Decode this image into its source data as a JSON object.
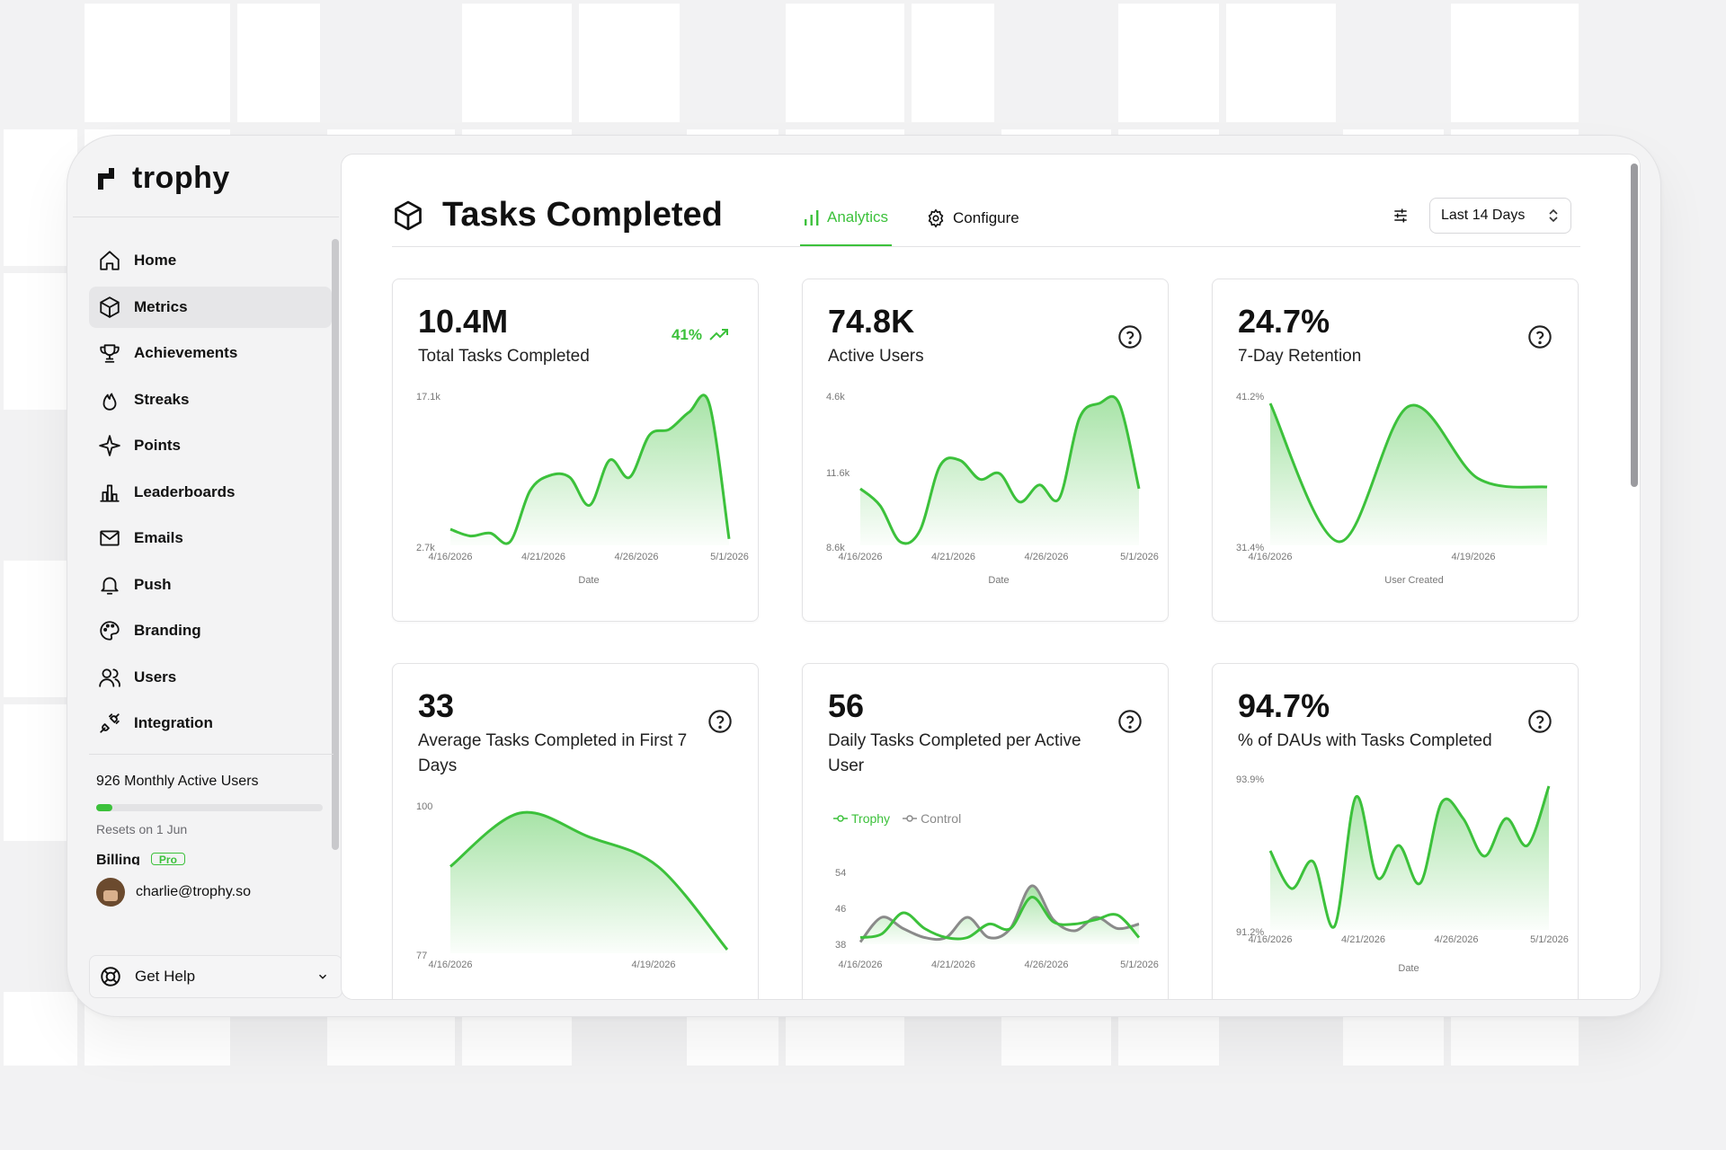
{
  "app": {
    "name": "trophy"
  },
  "sidebar": {
    "items": [
      {
        "label": "Home",
        "icon": "home-icon"
      },
      {
        "label": "Metrics",
        "icon": "cube-icon",
        "active": true
      },
      {
        "label": "Achievements",
        "icon": "trophy-icon"
      },
      {
        "label": "Streaks",
        "icon": "flame-icon"
      },
      {
        "label": "Points",
        "icon": "sparkle-icon"
      },
      {
        "label": "Leaderboards",
        "icon": "bar-chart-icon"
      },
      {
        "label": "Emails",
        "icon": "mail-icon"
      },
      {
        "label": "Push",
        "icon": "bell-icon"
      },
      {
        "label": "Branding",
        "icon": "palette-icon"
      },
      {
        "label": "Users",
        "icon": "users-icon"
      },
      {
        "label": "Integration",
        "icon": "plug-icon"
      }
    ],
    "usage": {
      "label": "926 Monthly Active Users",
      "progress": 0.07,
      "resets": "Resets on 1 Jun"
    },
    "billing": {
      "label": "Billing",
      "badge": "Pro"
    },
    "user": {
      "email": "charlie@trophy.so"
    },
    "help": {
      "label": "Get Help"
    }
  },
  "header": {
    "title": "Tasks Completed",
    "tabs": [
      {
        "label": "Analytics",
        "active": true,
        "icon": "analytics-icon"
      },
      {
        "label": "Configure",
        "icon": "gear-icon"
      }
    ],
    "range": "Last 14 Days"
  },
  "colors": {
    "accent": "#3cc13b",
    "control": "#8a8a8a"
  },
  "cards": [
    {
      "value": "10.4M",
      "label": "Total Tasks Completed",
      "trend": "41%"
    },
    {
      "value": "74.8K",
      "label": "Active Users"
    },
    {
      "value": "24.7%",
      "label": "7-Day Retention"
    },
    {
      "value": "33",
      "label": "Average Tasks Completed in First 7 Days"
    },
    {
      "value": "56",
      "label": "Daily Tasks Completed per Active User"
    },
    {
      "value": "94.7%",
      "label": "% of DAUs with Tasks Completed"
    }
  ],
  "chart_data": [
    {
      "type": "area",
      "xlabel": "Date",
      "ylim_labels": [
        "2.7k",
        "17.1k"
      ],
      "x_ticks": [
        "4/16/2026",
        "4/21/2026",
        "4/26/2026",
        "5/1/2026"
      ],
      "values": [
        4.0,
        3.3,
        3.6,
        2.7,
        8.0,
        9.6,
        9.4,
        6.5,
        11.2,
        9.4,
        13.8,
        14.4,
        16.2,
        17.1,
        3.0
      ]
    },
    {
      "type": "area",
      "xlabel": "Date",
      "ylim_labels": [
        "8.6k",
        "11.6k",
        "4.6k"
      ],
      "x_ticks": [
        "4/16/2026",
        "4/21/2026",
        "4/26/2026",
        "5/1/2026"
      ],
      "values": [
        0.78,
        0.69,
        0.5,
        0.56,
        0.9,
        0.93,
        0.83,
        0.86,
        0.71,
        0.8,
        0.73,
        1.15,
        1.23,
        1.23,
        0.78
      ]
    },
    {
      "type": "area",
      "xlabel": "User Created",
      "ylim_labels": [
        "31.4%",
        "41.2%"
      ],
      "x_ticks": [
        "4/16/2026",
        "4/19/2026"
      ],
      "values": [
        41.2,
        31.6,
        41.0,
        36.0,
        35.4
      ]
    },
    {
      "type": "area",
      "ylim_labels": [
        "77",
        "100"
      ],
      "x_ticks": [
        "4/16/2026",
        "4/19/2026"
      ],
      "values": [
        91,
        100,
        96,
        91,
        77
      ]
    },
    {
      "type": "line",
      "x_ticks": [
        "4/16/2026",
        "4/21/2026",
        "4/26/2026",
        "5/1/2026"
      ],
      "y_ticks": [
        "38",
        "46",
        "54"
      ],
      "series": [
        {
          "name": "Trophy",
          "values": [
            39.5,
            40.3,
            45.0,
            41.5,
            39.5,
            39.5,
            42.5,
            41.5,
            48.5,
            43.0,
            42.5,
            43.5,
            44.5,
            39.5
          ]
        },
        {
          "name": "Control",
          "values": [
            38.5,
            44.0,
            41.5,
            39.5,
            39.5,
            44.0,
            39.5,
            41.5,
            51.0,
            43.5,
            41.0,
            44.0,
            41.5,
            42.5
          ]
        }
      ]
    },
    {
      "type": "area",
      "xlabel": "Date",
      "ylim_labels": [
        "91.2%",
        "93.9%"
      ],
      "x_ticks": [
        "4/16/2026",
        "4/21/2026",
        "4/26/2026",
        "5/1/2026"
      ],
      "values": [
        92.7,
        92.0,
        92.5,
        91.3,
        93.7,
        92.2,
        92.8,
        92.1,
        93.6,
        93.3,
        92.6,
        93.3,
        92.8,
        93.9
      ]
    }
  ]
}
